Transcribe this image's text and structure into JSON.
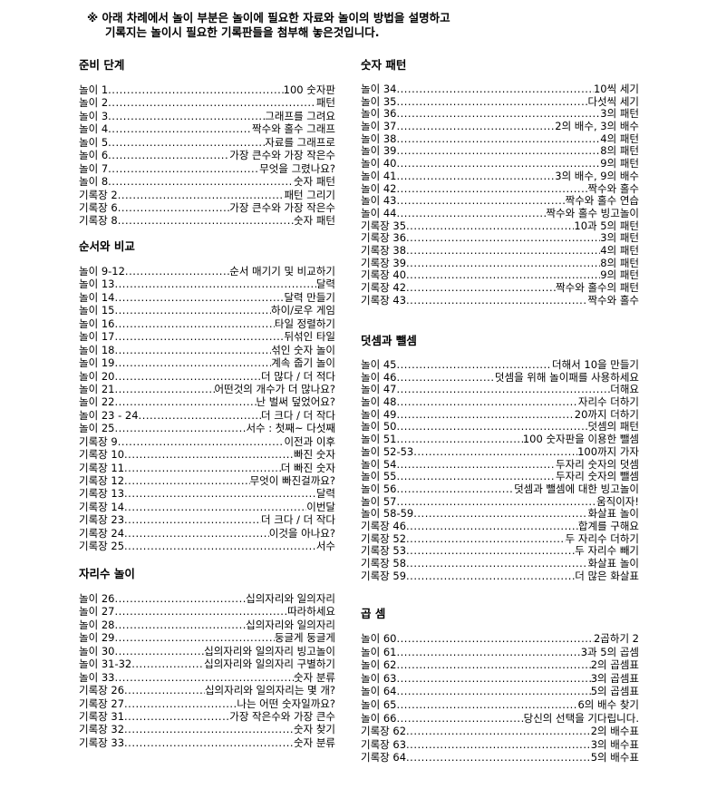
{
  "notice": {
    "line1": "※ 아래 차례에서 놀이 부분은 놀이에 필요한 자료와 놀이의 방법을 설명하고",
    "line2": "기록지는 놀이시 필요한 기록판들을 첨부해 놓은것입니다."
  },
  "sections": [
    {
      "title": "준비 단계",
      "items": [
        {
          "label": "놀이 1",
          "value": "100 숫자판"
        },
        {
          "label": "놀이 2",
          "value": "패턴"
        },
        {
          "label": "놀이 3",
          "value": "그래프를 그려요"
        },
        {
          "label": "놀이 4",
          "value": "짝수와 홀수 그래프"
        },
        {
          "label": "놀이 5",
          "value": "자료를 그래프로"
        },
        {
          "label": "놀이 6",
          "value": "가장 큰수와 가장 작은수"
        },
        {
          "label": "놀이 7",
          "value": "무엇을 그렸나요?"
        },
        {
          "label": "놀이 8",
          "value": "숫자 패턴"
        },
        {
          "label": "기록장 2",
          "value": "패턴 그리기"
        },
        {
          "label": "기록장 6",
          "value": "가장 큰수와 가장 작은수"
        },
        {
          "label": "기록장 8",
          "value": "숫자 패턴"
        }
      ]
    },
    {
      "title": "순서와 비교",
      "items": [
        {
          "label": "놀이 9-12",
          "value": "순서 매기기 및 비교하기"
        },
        {
          "label": "놀이 13",
          "value": "달력"
        },
        {
          "label": "놀이 14",
          "value": "달력 만들기"
        },
        {
          "label": "놀이 15",
          "value": "하이/로우 게임"
        },
        {
          "label": "놀이 16",
          "value": "타일 정렬하기"
        },
        {
          "label": "놀이 17",
          "value": "뒤섞인 타일"
        },
        {
          "label": "놀이 18",
          "value": "섞인 숫자 놀이"
        },
        {
          "label": "놀이 19",
          "value": "계속 줍기 놀이"
        },
        {
          "label": "놀이 20",
          "value": "더 많다 / 더 적다"
        },
        {
          "label": "놀이 21",
          "value": "어떤것의 개수가 더 많나요?"
        },
        {
          "label": "놀이 22",
          "value": "난 벌써 덮었어요?"
        },
        {
          "label": "놀이 23 - 24",
          "value": "더 크다 / 더 작다"
        },
        {
          "label": "놀이 25",
          "value": "서수 : 첫째~ 다섯째"
        },
        {
          "label": "기록장 9",
          "value": "이전과 이후"
        },
        {
          "label": "기록장 10",
          "value": "빠진 숫자"
        },
        {
          "label": "기록장 11",
          "value": "더 빠진 숫자"
        },
        {
          "label": "기록장 12",
          "value": "무엇이 빠진걸까요?"
        },
        {
          "label": "기록장 13",
          "value": "달력"
        },
        {
          "label": "기록장 14",
          "value": "이번달"
        },
        {
          "label": "기록장 23",
          "value": "더 크다 / 더 작다"
        },
        {
          "label": "기록장 24",
          "value": "이것을 아나요?"
        },
        {
          "label": "기록장 25",
          "value": "서수"
        }
      ]
    },
    {
      "title": "자리수 놀이",
      "items": [
        {
          "label": "놀이 26",
          "value": "십의자리와 일의자리"
        },
        {
          "label": "놀이 27",
          "value": "따라하세요"
        },
        {
          "label": "놀이 28",
          "value": "십의자리와 일의자리"
        },
        {
          "label": "놀이 29",
          "value": "둥글게 둥글게"
        },
        {
          "label": "놀이 30",
          "value": "십의자리와 일의자리 빙고놀이"
        },
        {
          "label": "놀이 31-32",
          "value": "십의자리와 일의자리 구별하기"
        },
        {
          "label": "놀이 33",
          "value": "숫자 분류"
        },
        {
          "label": "기록장 26",
          "value": "십의자리와 일의자리는 몇 개?"
        },
        {
          "label": "기록장 27",
          "value": "나는 어떤 숫자일까요?"
        },
        {
          "label": "기록장 31",
          "value": "가장 작은수와 가장 큰수"
        },
        {
          "label": "기록장 32",
          "value": "숫자 찾기"
        },
        {
          "label": "기록장 33",
          "value": "숫자 분류"
        }
      ]
    },
    {
      "title": "숫자 패턴",
      "items": [
        {
          "label": "놀이 34",
          "value": "10씩 세기"
        },
        {
          "label": "놀이 35",
          "value": "다섯씩 세기"
        },
        {
          "label": "놀이 36",
          "value": "3의 패턴"
        },
        {
          "label": "놀이 37",
          "value": "2의 배수, 3의 배수"
        },
        {
          "label": "놀이 38",
          "value": "4의 패턴"
        },
        {
          "label": "놀이 39",
          "value": "8의 패턴"
        },
        {
          "label": "놀이 40",
          "value": "9의 패턴"
        },
        {
          "label": "놀이 41",
          "value": "3의 배수, 9의 배수"
        },
        {
          "label": "놀이 42",
          "value": "짝수와 홀수"
        },
        {
          "label": "놀이 43",
          "value": "짝수와 홀수 연습"
        },
        {
          "label": "놀이 44",
          "value": "짝수와 홀수 빙고놀이"
        },
        {
          "label": "기록장 35",
          "value": "10과 5의 패턴"
        },
        {
          "label": "기록장 36",
          "value": "3의 패턴"
        },
        {
          "label": "기록장 38",
          "value": "4의 패턴"
        },
        {
          "label": "기록장 39",
          "value": "8의 패턴"
        },
        {
          "label": "기록장 40",
          "value": "9의 패턴"
        },
        {
          "label": "기록장 42",
          "value": "짝수와 홀수의 패턴"
        },
        {
          "label": "기록장 43",
          "value": "짝수와 홀수"
        }
      ]
    },
    {
      "title": "덧셈과 뺄셈",
      "items": [
        {
          "label": "놀이 45",
          "value": "더해서 10을 만들기"
        },
        {
          "label": "놀이 46",
          "value": "덧셈을 위해 놀이패를 사용하세요"
        },
        {
          "label": "놀이 47",
          "value": "더해요"
        },
        {
          "label": "놀이 48",
          "value": "자리수 더하기"
        },
        {
          "label": "놀이 49",
          "value": "20까지 더하기"
        },
        {
          "label": "놀이 50",
          "value": "덧셈의 패턴"
        },
        {
          "label": "놀이 51",
          "value": "100 숫자판을 이용한 뺄셈"
        },
        {
          "label": "놀이 52-53",
          "value": "100까지 가자"
        },
        {
          "label": "놀이 54",
          "value": "두자리 숫자의 덧셈"
        },
        {
          "label": "놀이 55",
          "value": "두자리 숫자의 뺄셈"
        },
        {
          "label": "놀이 56",
          "value": "덧셈과 뺄셈에 대한 빙고놀이"
        },
        {
          "label": "놀이 57",
          "value": "움직이자!"
        },
        {
          "label": "놀이 58-59",
          "value": "화살표 놀이"
        },
        {
          "label": "기록장 46",
          "value": "합계를 구해요"
        },
        {
          "label": "기록장 52",
          "value": "두 자리수 더하기"
        },
        {
          "label": "기록장 53",
          "value": "두 자리수 빼기"
        },
        {
          "label": "기록장 58",
          "value": "화살표 놀이"
        },
        {
          "label": "기록장 59",
          "value": "더 많은 화살표"
        }
      ]
    },
    {
      "title": "곱 셈",
      "items": [
        {
          "label": "놀이 60",
          "value": "2곱하기 2"
        },
        {
          "label": "놀이 61",
          "value": "3과 5의 곱셈"
        },
        {
          "label": "놀이 62",
          "value": "2의 곱셈표"
        },
        {
          "label": "놀이 63",
          "value": "3의 곱셈표"
        },
        {
          "label": "놀이 64",
          "value": "5의 곱셈표"
        },
        {
          "label": "놀이 65",
          "value": "6의 배수 찾기"
        },
        {
          "label": "놀이 66",
          "value": "당신의 선택을 기다립니다."
        },
        {
          "label": "기록장 62",
          "value": "2의 배수표"
        },
        {
          "label": "기록장 63",
          "value": "3의 배수표"
        },
        {
          "label": "기록장 64",
          "value": "5의 배수표"
        }
      ]
    }
  ]
}
